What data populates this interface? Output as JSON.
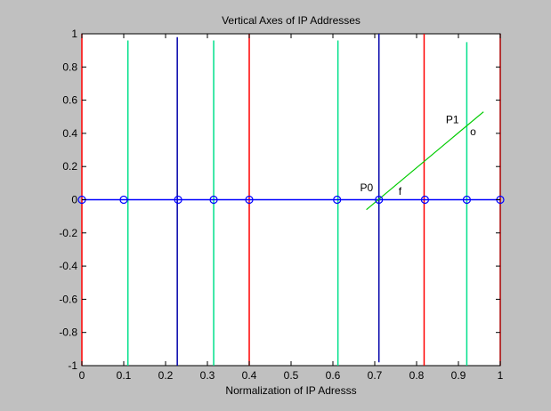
{
  "chart_data": {
    "type": "line",
    "title": "Vertical Axes of IP Addresses",
    "xlabel": "Normalization of IP Adresss",
    "ylabel": "",
    "xlim": [
      0,
      1
    ],
    "ylim": [
      -1,
      1
    ],
    "xticks": [
      0,
      0.1,
      0.2,
      0.3,
      0.4,
      0.5,
      0.6,
      0.7,
      0.8,
      0.9,
      1
    ],
    "xtick_labels": [
      "0",
      "0.1",
      "0.2",
      "0.3",
      "0.4",
      "0.5",
      "0.6",
      "0.7",
      "0.8",
      "0.9",
      "1"
    ],
    "yticks": [
      -1,
      -0.8,
      -0.6,
      -0.4,
      -0.2,
      0,
      0.2,
      0.4,
      0.6,
      0.8,
      1
    ],
    "ytick_labels": [
      "-1",
      "-0.8",
      "-0.6",
      "-0.4",
      "-0.2",
      "0",
      "0.2",
      "0.4",
      "0.6",
      "0.8",
      "1"
    ],
    "grid": false,
    "vertical_lines": [
      {
        "x": 0.0,
        "y0": -1,
        "y1": 1,
        "color": "#ff0000"
      },
      {
        "x": 0.11,
        "y0": -1,
        "y1": 0.96,
        "color": "#00e08a"
      },
      {
        "x": 0.228,
        "y0": -1,
        "y1": 0.98,
        "color": "#0000aa"
      },
      {
        "x": 0.315,
        "y0": -1,
        "y1": 0.96,
        "color": "#00e08a"
      },
      {
        "x": 0.4,
        "y0": -1,
        "y1": 1,
        "color": "#ff0000"
      },
      {
        "x": 0.612,
        "y0": -1,
        "y1": 0.96,
        "color": "#00e08a"
      },
      {
        "x": 0.71,
        "y0": -0.98,
        "y1": 1,
        "color": "#0000aa"
      },
      {
        "x": 0.818,
        "y0": -1,
        "y1": 1,
        "color": "#ff0000"
      },
      {
        "x": 0.92,
        "y0": -1,
        "y1": 0.95,
        "color": "#00e08a"
      },
      {
        "x": 1.0,
        "y0": -1,
        "y1": 1,
        "color": "#aa0000"
      }
    ],
    "horizontal_series": {
      "color": "#0000ff",
      "x": [
        0.0,
        0.1,
        0.23,
        0.315,
        0.4,
        0.61,
        0.71,
        0.82,
        0.92,
        1.0
      ],
      "y": [
        0,
        0,
        0,
        0,
        0,
        0,
        0,
        0,
        0,
        0
      ],
      "marker": "circle"
    },
    "diagonal_line": {
      "color": "#00cc00",
      "x": [
        0.68,
        0.96
      ],
      "y": [
        -0.06,
        0.53
      ]
    },
    "annotations": [
      {
        "text": "P0",
        "x": 0.665,
        "y": 0.05
      },
      {
        "text": "f",
        "x": 0.757,
        "y": 0.03
      },
      {
        "text": "P1",
        "x": 0.87,
        "y": 0.46
      },
      {
        "text": "o",
        "x": 0.928,
        "y": 0.39
      }
    ]
  }
}
